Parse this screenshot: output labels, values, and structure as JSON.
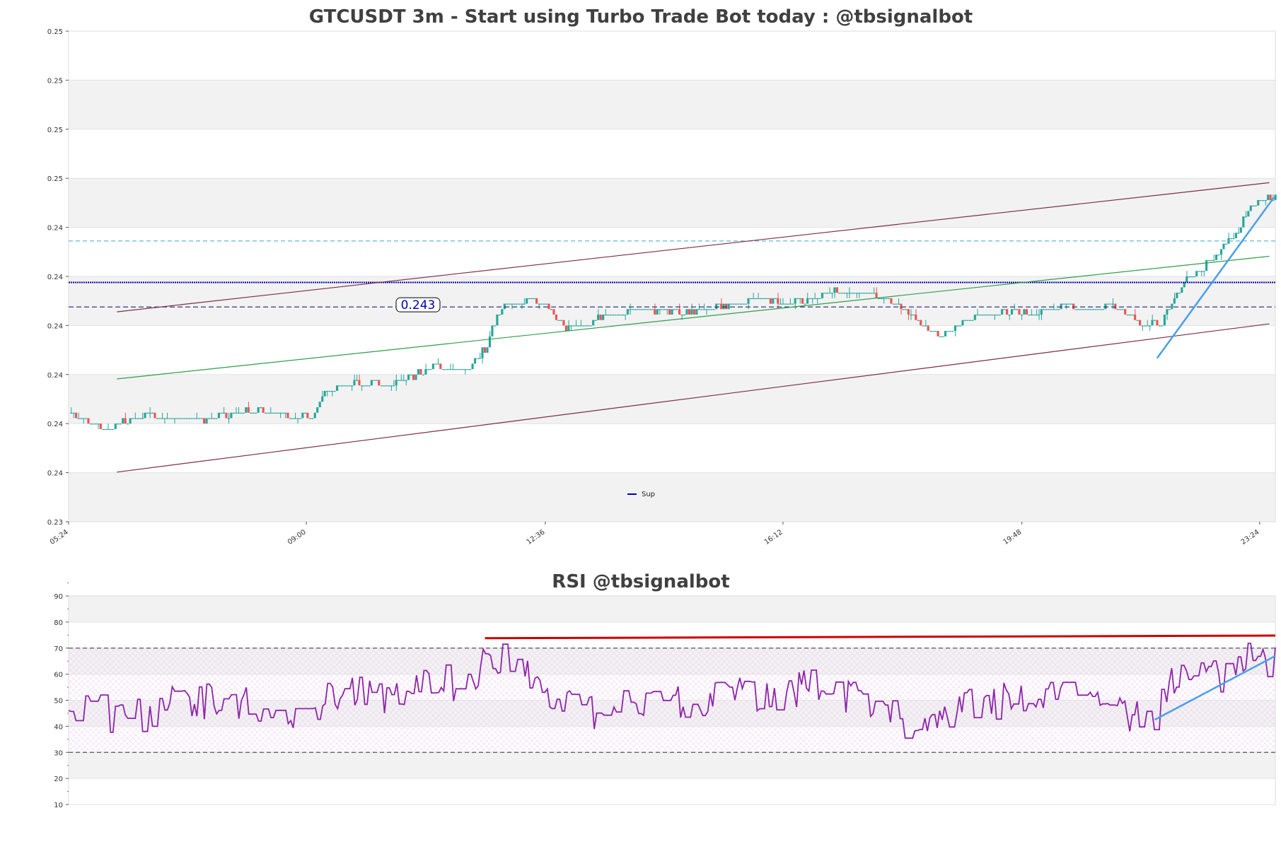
{
  "chart_data": [
    {
      "type": "candlestick",
      "title": "GTCUSDT 3m - Start using Turbo Trade Bot today : @tbsignalbot",
      "y_tick_labels": [
        "0.23",
        "0.24",
        "0.24",
        "0.24",
        "0.24",
        "0.24",
        "0.24",
        "0.25",
        "0.25",
        "0.25",
        "0.25"
      ],
      "x_tick_labels": [
        "05:24",
        "09:00",
        "12:36",
        "16:12",
        "19:48",
        "23:24"
      ],
      "ylim": [
        0.2395,
        0.2485
      ],
      "y_ticks": [
        0.2395,
        0.2404,
        0.2413,
        0.2422,
        0.2431,
        0.244,
        0.2449,
        0.2458,
        0.2467,
        0.2476,
        0.2485
      ],
      "grid": true,
      "price_label": "0.243",
      "legend": {
        "entries": [
          "Sup"
        ],
        "placement": "bottom-center"
      },
      "colors": {
        "up": "#26a69a",
        "down": "#ef5350",
        "channel": "#7b2d44",
        "midline": "#2e9e4a",
        "support": "#0000aa",
        "resistance": "#5bb8d6",
        "trend": "#4a9ee8"
      },
      "levels": {
        "resistance": 0.24465,
        "support_solid": 0.24389,
        "support_dashed": 0.24344
      },
      "channel": {
        "upper": [
          0.24335,
          0.24572
        ],
        "lower": [
          0.24041,
          0.24313
        ],
        "mid": [
          0.24212,
          0.24437
        ],
        "x_range": [
          0.04,
          0.995
        ]
      },
      "trendline": {
        "start": [
          0.902,
          0.2425
        ],
        "end": [
          1.0,
          0.24545
        ]
      },
      "sessions": [
        0,
        0.197,
        0.395,
        0.592,
        0.79,
        0.987
      ]
    },
    {
      "type": "line",
      "title": "RSI @tbsignalbot",
      "ylim": [
        10,
        90
      ],
      "y_tick_labels": [
        "10",
        "20",
        "30",
        "40",
        "50",
        "60",
        "70",
        "80",
        "90"
      ],
      "levels": [
        30,
        70
      ],
      "grid": true,
      "colors": {
        "rsi": "#8e24aa",
        "resistance": "#cc0000",
        "trend": "#4a9ee8"
      },
      "resistance_line": {
        "start": [
          0.345,
          73.8
        ],
        "end": [
          1.0,
          74.8
        ]
      },
      "trendline": {
        "start": [
          0.9,
          42.5
        ],
        "end": [
          1.0,
          67
        ]
      }
    }
  ]
}
